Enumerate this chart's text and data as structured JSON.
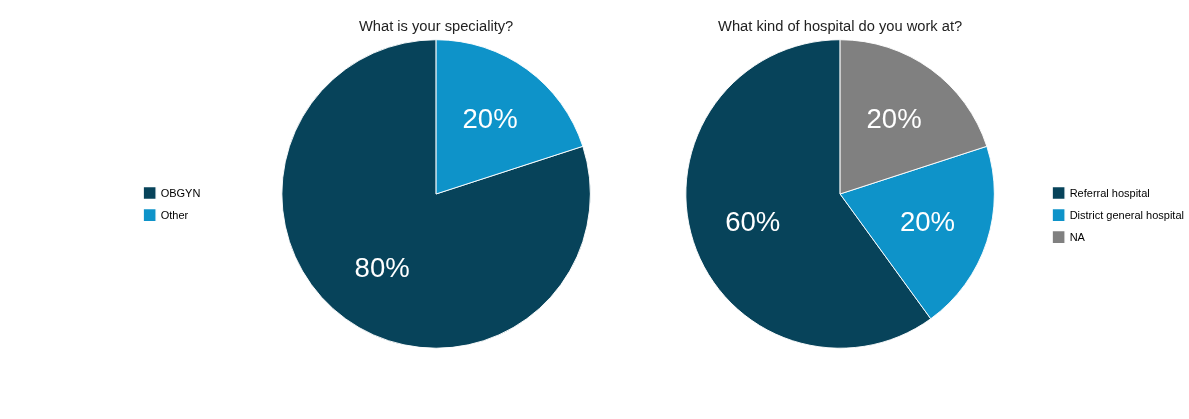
{
  "chart_data": [
    {
      "type": "pie",
      "title": "What is your speciality?",
      "categories": [
        "OBGYN",
        "Other"
      ],
      "values": [
        80,
        20
      ],
      "colors": [
        "#07435a",
        "#0e93c9"
      ],
      "value_labels": [
        "80%",
        "20%"
      ],
      "legend": "left"
    },
    {
      "type": "pie",
      "title": "What kind of hospital do you work at?",
      "categories": [
        "Referral hospital",
        "District general hospital",
        "NA"
      ],
      "values": [
        60,
        20,
        20
      ],
      "colors": [
        "#07435a",
        "#0e93c9",
        "#808080"
      ],
      "value_labels": [
        "60%",
        "20%",
        "20%"
      ],
      "legend": "right"
    }
  ]
}
